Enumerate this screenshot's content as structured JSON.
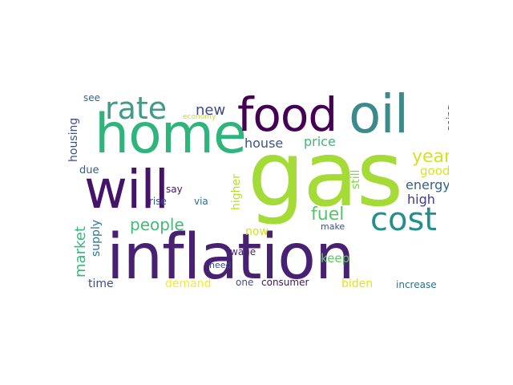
{
  "words": {
    "gas": {
      "text": "gas",
      "color": "#a5db36"
    },
    "inflation": {
      "text": "inflation",
      "color": "#482173"
    },
    "home": {
      "text": "home",
      "color": "#2fb47c"
    },
    "will": {
      "text": "will",
      "color": "#46136a"
    },
    "food": {
      "text": "food",
      "color": "#440154"
    },
    "oil": {
      "text": "oil",
      "color": "#3b8a8c"
    },
    "rate": {
      "text": "rate",
      "color": "#3e9c89"
    },
    "cost": {
      "text": "cost",
      "color": "#21908d"
    },
    "people": {
      "text": "people",
      "color": "#46b97a"
    },
    "fuel": {
      "text": "fuel",
      "color": "#54c568"
    },
    "year": {
      "text": "year",
      "color": "#d6e21b"
    },
    "market": {
      "text": "market",
      "color": "#38b77d"
    },
    "new": {
      "text": "new",
      "color": "#3f4889"
    },
    "house": {
      "text": "house",
      "color": "#3a538b"
    },
    "price": {
      "text": "price",
      "color": "#3aba76"
    },
    "energy": {
      "text": "energy",
      "color": "#34608d"
    },
    "high": {
      "text": "high",
      "color": "#453882"
    },
    "good": {
      "text": "good",
      "color": "#dde318"
    },
    "housing": {
      "text": "housing",
      "color": "#3c508b"
    },
    "supply": {
      "text": "supply",
      "color": "#2a788e"
    },
    "higher": {
      "text": "higher",
      "color": "#bade28"
    },
    "still": {
      "text": "still",
      "color": "#81d34d"
    },
    "keep": {
      "text": "keep",
      "color": "#5ec962"
    },
    "now": {
      "text": "now",
      "color": "#d5e21a"
    },
    "time": {
      "text": "time",
      "color": "#3e4c8a"
    },
    "demand": {
      "text": "demand",
      "color": "#fde725"
    },
    "one": {
      "text": "one",
      "color": "#3b528b"
    },
    "consumer": {
      "text": "consumer",
      "color": "#471063"
    },
    "biden": {
      "text": "biden",
      "color": "#e2e418"
    },
    "increase": {
      "text": "increase",
      "color": "#2c718e"
    },
    "due": {
      "text": "due",
      "color": "#365c8d"
    },
    "say": {
      "text": "say",
      "color": "#471164"
    },
    "rise": {
      "text": "rise",
      "color": "#3b528b"
    },
    "via": {
      "text": "via",
      "color": "#2d708e"
    },
    "wage": {
      "text": "wage",
      "color": "#482475"
    },
    "need": {
      "text": "need",
      "color": "#3e4a89"
    },
    "make": {
      "text": "make",
      "color": "#3d4e8a"
    },
    "see": {
      "text": "see",
      "color": "#32648e"
    },
    "economy": {
      "text": "economy",
      "color": "#c2df23"
    },
    "going": {
      "text": "going",
      "color": "#443983"
    }
  }
}
